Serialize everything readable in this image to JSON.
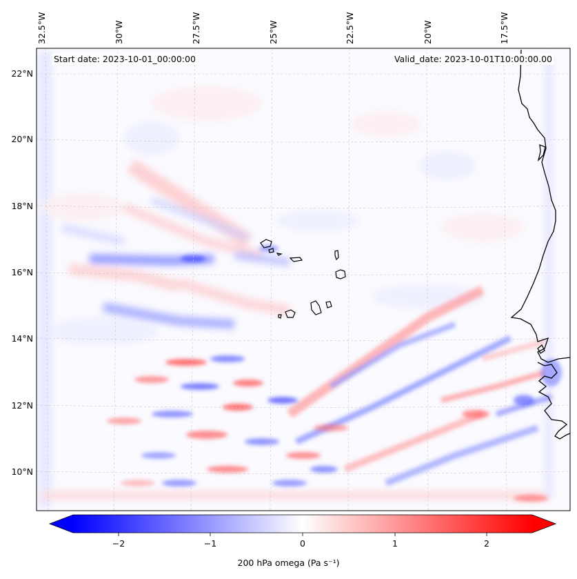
{
  "map": {
    "start_label": "Start date: 2023-10-01_00:00:00",
    "valid_label": "Valid_date: 2023-10-01T10:00:00.00",
    "lon_labels": [
      "32.5°W",
      "30°W",
      "27.5°W",
      "25°W",
      "22.5°W",
      "20°W",
      "17.5°W"
    ],
    "lat_labels": [
      "22°N",
      "20°N",
      "18°N",
      "16°N",
      "14°N",
      "12°N",
      "10°N"
    ],
    "variable": "200 hPa omega",
    "colorbar": {
      "label": "200 hPa omega (Pa s⁻¹)",
      "ticks": [
        "−2",
        "−1",
        "0",
        "1",
        "2"
      ],
      "range": [
        -2.5,
        2.5
      ],
      "cmap": "bwr",
      "extend": "both",
      "low_color": "#0000ff",
      "mid_color": "#ffffff",
      "high_color": "#ff0000"
    },
    "features": [
      "coastline-west-africa",
      "cape-verde-islands"
    ]
  }
}
